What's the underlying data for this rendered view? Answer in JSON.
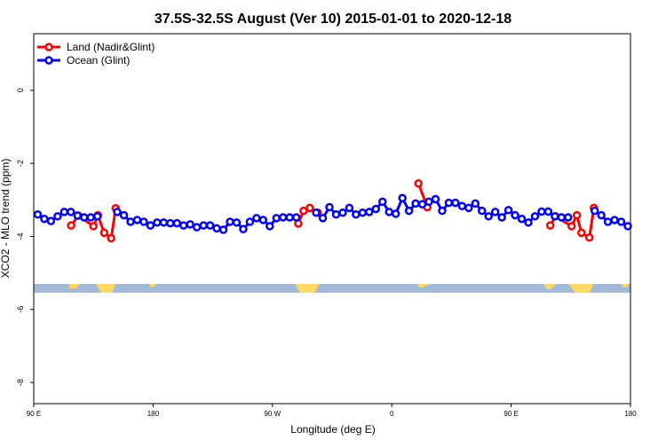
{
  "chart_data": {
    "type": "line",
    "title": "37.5S-32.5S August (Ver 10)   2015-01-01 to 2020-12-18",
    "x_label": "Longitude (deg E)",
    "y_label": "XCO2 - MLO trend (ppm)",
    "xlim": [
      90,
      540
    ],
    "ylim": [
      -8.58,
      1.55
    ],
    "xticks": [
      {
        "value": 90,
        "label": "90 E"
      },
      {
        "value": 180,
        "label": "180"
      },
      {
        "value": 270,
        "label": "90 W"
      },
      {
        "value": 360,
        "label": "0"
      },
      {
        "value": 450,
        "label": "90 E"
      },
      {
        "value": 540,
        "label": "180"
      }
    ],
    "yticks": [
      0,
      -2,
      -4,
      -6,
      -8
    ],
    "legend": "top-left",
    "series": [
      {
        "name": "Land (Nadir&Glint)",
        "color": "#ff0000",
        "x": [
          118.2,
          123.6,
          135,
          138.4,
          143.1,
          148.4,
          151.8,
          220,
          289.5,
          293.5,
          298.2,
          304.2,
          340,
          380.1,
          386.8,
          430,
          479.5,
          483.5,
          495.6,
          499.6,
          503,
          509,
          512.4
        ],
        "values": [
          -3.7,
          -3.43,
          -3.72,
          -3.42,
          -3.9,
          -4.05,
          -3.23,
          null,
          -3.65,
          -3.3,
          -3.22,
          -3.35,
          null,
          -2.55,
          -3.2,
          null,
          -3.7,
          -3.45,
          -3.72,
          -3.42,
          -3.9,
          -4.03,
          -3.22
        ]
      },
      {
        "name": "Ocean (Glint)",
        "color": "#0000ff",
        "x": [
          93,
          98,
          103,
          108,
          113,
          118,
          123,
          128,
          133,
          138,
          143,
          148,
          153,
          158,
          163,
          168,
          173,
          178,
          183,
          188,
          193,
          198,
          203,
          208,
          213,
          218,
          223,
          228,
          233,
          238,
          243,
          248,
          253,
          258,
          263,
          268,
          273,
          278,
          283,
          288,
          293,
          298,
          303,
          308,
          313,
          318,
          323,
          328,
          333,
          338,
          343,
          348,
          353,
          358,
          363,
          368,
          373,
          378,
          383,
          388,
          393,
          398,
          403,
          408,
          413,
          418,
          423,
          428,
          433,
          438,
          443,
          448,
          453,
          458,
          463,
          468,
          473,
          478,
          483,
          488,
          493,
          498,
          503,
          508,
          513,
          518,
          523,
          528,
          533,
          538
        ],
        "values": [
          -3.4,
          -3.52,
          -3.58,
          -3.45,
          -3.33,
          -3.33,
          -3.43,
          -3.48,
          -3.48,
          -3.45,
          null,
          null,
          -3.33,
          -3.42,
          -3.6,
          -3.55,
          -3.6,
          -3.7,
          -3.62,
          -3.62,
          -3.64,
          -3.64,
          -3.7,
          -3.67,
          -3.75,
          -3.7,
          -3.7,
          -3.78,
          -3.82,
          -3.6,
          -3.62,
          -3.8,
          -3.6,
          -3.5,
          -3.55,
          -3.72,
          -3.5,
          -3.48,
          -3.48,
          -3.48,
          null,
          null,
          -3.35,
          -3.5,
          -3.2,
          -3.4,
          -3.35,
          -3.22,
          -3.4,
          -3.35,
          -3.33,
          -3.25,
          -3.05,
          -3.33,
          -3.38,
          -2.95,
          -3.3,
          -3.1,
          -3.12,
          -3.05,
          -2.98,
          -3.3,
          -3.08,
          -3.08,
          -3.17,
          -3.22,
          -3.1,
          -3.3,
          -3.45,
          -3.33,
          -3.48,
          -3.28,
          -3.42,
          -3.52,
          -3.62,
          -3.45,
          -3.32,
          -3.32,
          -3.45,
          -3.48,
          -3.48,
          null,
          null,
          null,
          -3.3,
          -3.42,
          -3.6,
          -3.55,
          -3.6,
          -3.72
        ]
      }
    ]
  }
}
